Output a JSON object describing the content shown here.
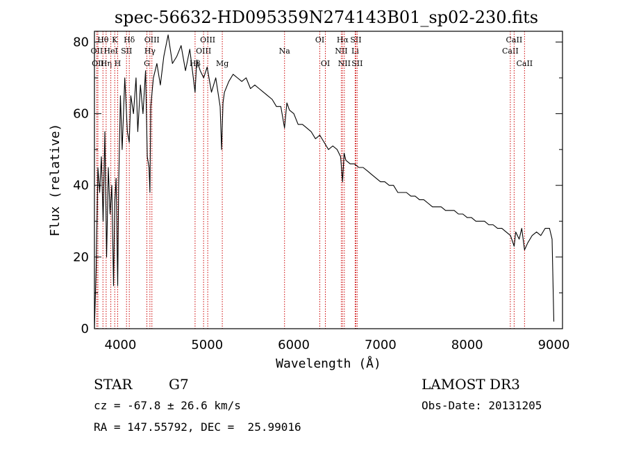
{
  "chart_data": {
    "type": "line",
    "title": "spec-56632-HD095359N274143B01_sp02-230.fits",
    "xlabel": "Wavelength (Å)",
    "ylabel": "Flux (relative)",
    "xlim": [
      3700,
      9100
    ],
    "ylim": [
      0,
      83
    ],
    "xticks": [
      4000,
      5000,
      6000,
      7000,
      8000,
      9000
    ],
    "yticks": [
      0,
      20,
      40,
      60,
      80
    ],
    "x_minor_step": 200,
    "y_minor_step": 10,
    "grid": false,
    "line_color": "#000000",
    "marker_color": "#cc0000",
    "series": [
      {
        "name": "flux",
        "x": [
          3700,
          3720,
          3740,
          3760,
          3780,
          3800,
          3820,
          3840,
          3860,
          3880,
          3900,
          3920,
          3934,
          3950,
          3968,
          3980,
          4000,
          4020,
          4050,
          4080,
          4101,
          4120,
          4150,
          4180,
          4200,
          4230,
          4260,
          4290,
          4310,
          4330,
          4340,
          4350,
          4380,
          4420,
          4460,
          4500,
          4550,
          4600,
          4650,
          4700,
          4750,
          4800,
          4861,
          4880,
          4920,
          4960,
          5000,
          5050,
          5100,
          5150,
          5167,
          5183,
          5200,
          5250,
          5300,
          5350,
          5400,
          5450,
          5500,
          5550,
          5600,
          5650,
          5700,
          5750,
          5800,
          5850,
          5893,
          5920,
          5950,
          6000,
          6050,
          6100,
          6150,
          6200,
          6250,
          6300,
          6350,
          6400,
          6450,
          6500,
          6540,
          6563,
          6580,
          6600,
          6650,
          6700,
          6750,
          6800,
          6850,
          6900,
          6950,
          7000,
          7050,
          7100,
          7150,
          7200,
          7250,
          7300,
          7350,
          7400,
          7450,
          7500,
          7550,
          7600,
          7650,
          7700,
          7750,
          7800,
          7850,
          7900,
          7950,
          8000,
          8050,
          8100,
          8150,
          8200,
          8250,
          8300,
          8350,
          8400,
          8450,
          8500,
          8542,
          8560,
          8600,
          8630,
          8662,
          8700,
          8750,
          8800,
          8850,
          8900,
          8950,
          8980,
          9000
        ],
        "y": [
          0,
          17,
          45,
          38,
          48,
          30,
          55,
          20,
          45,
          32,
          40,
          12,
          35,
          42,
          12,
          40,
          65,
          50,
          70,
          55,
          52,
          65,
          60,
          70,
          55,
          68,
          60,
          72,
          48,
          45,
          38,
          62,
          70,
          74,
          68,
          76,
          82,
          74,
          76,
          79,
          72,
          78,
          66,
          75,
          72,
          70,
          73,
          66,
          70,
          62,
          50,
          63,
          66,
          69,
          71,
          70,
          69,
          70,
          67,
          68,
          67,
          66,
          65,
          64,
          62,
          62,
          56,
          63,
          61,
          60,
          57,
          57,
          56,
          55,
          53,
          54,
          52,
          50,
          51,
          50,
          48,
          41,
          49,
          47,
          46,
          46,
          45,
          45,
          44,
          43,
          42,
          41,
          41,
          40,
          40,
          38,
          38,
          38,
          37,
          37,
          36,
          36,
          35,
          34,
          34,
          34,
          33,
          33,
          33,
          32,
          32,
          31,
          31,
          30,
          30,
          30,
          29,
          29,
          28,
          28,
          27,
          26,
          23,
          27,
          25,
          28,
          22,
          24,
          26,
          27,
          26,
          28,
          28,
          25,
          2
        ]
      }
    ],
    "lines": [
      {
        "label": "Hθ",
        "wavelength": 3798,
        "row": 1
      },
      {
        "label": "OII",
        "wavelength": 3727,
        "row": 2
      },
      {
        "label": "OII",
        "wavelength": 3740,
        "row": 3
      },
      {
        "label": "Hη",
        "wavelength": 3835,
        "row": 3
      },
      {
        "label": "HeI",
        "wavelength": 3889,
        "row": 2
      },
      {
        "label": "K",
        "wavelength": 3934,
        "row": 1
      },
      {
        "label": "H",
        "wavelength": 3968,
        "row": 3
      },
      {
        "label": "SII",
        "wavelength": 4070,
        "row": 2
      },
      {
        "label": "Hδ",
        "wavelength": 4102,
        "row": 1
      },
      {
        "label": "G",
        "wavelength": 4305,
        "row": 3
      },
      {
        "label": "Hγ",
        "wavelength": 4340,
        "row": 2
      },
      {
        "label": "OIII",
        "wavelength": 4363,
        "row": 1
      },
      {
        "label": "Hβ",
        "wavelength": 4861,
        "row": 3
      },
      {
        "label": "OIII",
        "wavelength": 4959,
        "row": 2
      },
      {
        "label": "OIII",
        "wavelength": 5007,
        "row": 1
      },
      {
        "label": "Mg",
        "wavelength": 5175,
        "row": 3
      },
      {
        "label": "Na",
        "wavelength": 5893,
        "row": 2
      },
      {
        "label": "OI",
        "wavelength": 6300,
        "row": 1
      },
      {
        "label": "OI",
        "wavelength": 6364,
        "row": 3
      },
      {
        "label": "NII",
        "wavelength": 6548,
        "row": 2
      },
      {
        "label": "Hα",
        "wavelength": 6563,
        "row": 1
      },
      {
        "label": "NII",
        "wavelength": 6583,
        "row": 3
      },
      {
        "label": "Li",
        "wavelength": 6708,
        "row": 2
      },
      {
        "label": "SII",
        "wavelength": 6716,
        "row": 1
      },
      {
        "label": "SII",
        "wavelength": 6731,
        "row": 3
      },
      {
        "label": "CaII",
        "wavelength": 8498,
        "row": 2
      },
      {
        "label": "CaII",
        "wavelength": 8542,
        "row": 1
      },
      {
        "label": "CaII",
        "wavelength": 8662,
        "row": 3
      }
    ]
  },
  "info": {
    "class": "STAR",
    "subclass": "G7",
    "survey": "LAMOST DR3",
    "cz": "cz = -67.8 ± 26.6 km/s",
    "obs_date": "Obs-Date: 20131205",
    "coords": "RA = 147.55792, DEC =  25.99016"
  }
}
